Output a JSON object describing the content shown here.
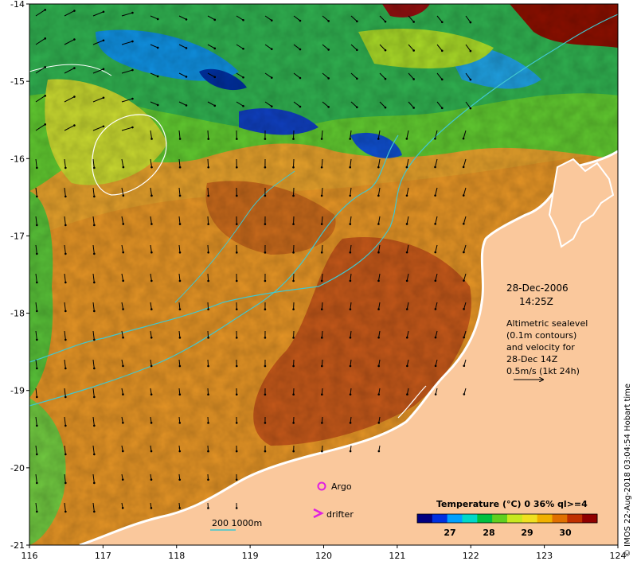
{
  "map": {
    "date": "28-Dec-2006",
    "time": "14:25Z",
    "description_lines": [
      "Altimetric sealevel",
      "(0.1m contours)",
      "and velocity for",
      "28-Dec 14Z",
      "0.5m/s (1kt 24h)"
    ],
    "x_ticks": [
      "116",
      "117",
      "118",
      "119",
      "120",
      "121",
      "122",
      "123",
      "124"
    ],
    "y_ticks": [
      "-14",
      "-15",
      "-16",
      "-17",
      "-18",
      "-19",
      "-20",
      "-21"
    ],
    "legend": {
      "argo": "Argo",
      "drifter": "drifter",
      "isobath": "200  1000m"
    },
    "colorbar": {
      "title": "Temperature (°C) 0 36% ql>=4",
      "ticks": [
        "27",
        "28",
        "29",
        "30"
      ],
      "colors": [
        "#000080",
        "#0030e0",
        "#00a0ff",
        "#00d8c8",
        "#00c040",
        "#60d020",
        "#c8e820",
        "#f0e020",
        "#f0b000",
        "#e07000",
        "#c03000",
        "#900000"
      ]
    },
    "credit": "© IMOS 22-Aug-2018 03:04:54 Hobart time",
    "colors": {
      "land": "#fac89c",
      "warm": "#e09020",
      "hot": "#b03a08",
      "cool": "#40c040",
      "isobath": "#40c8d0",
      "argo": "#e020e0"
    }
  }
}
